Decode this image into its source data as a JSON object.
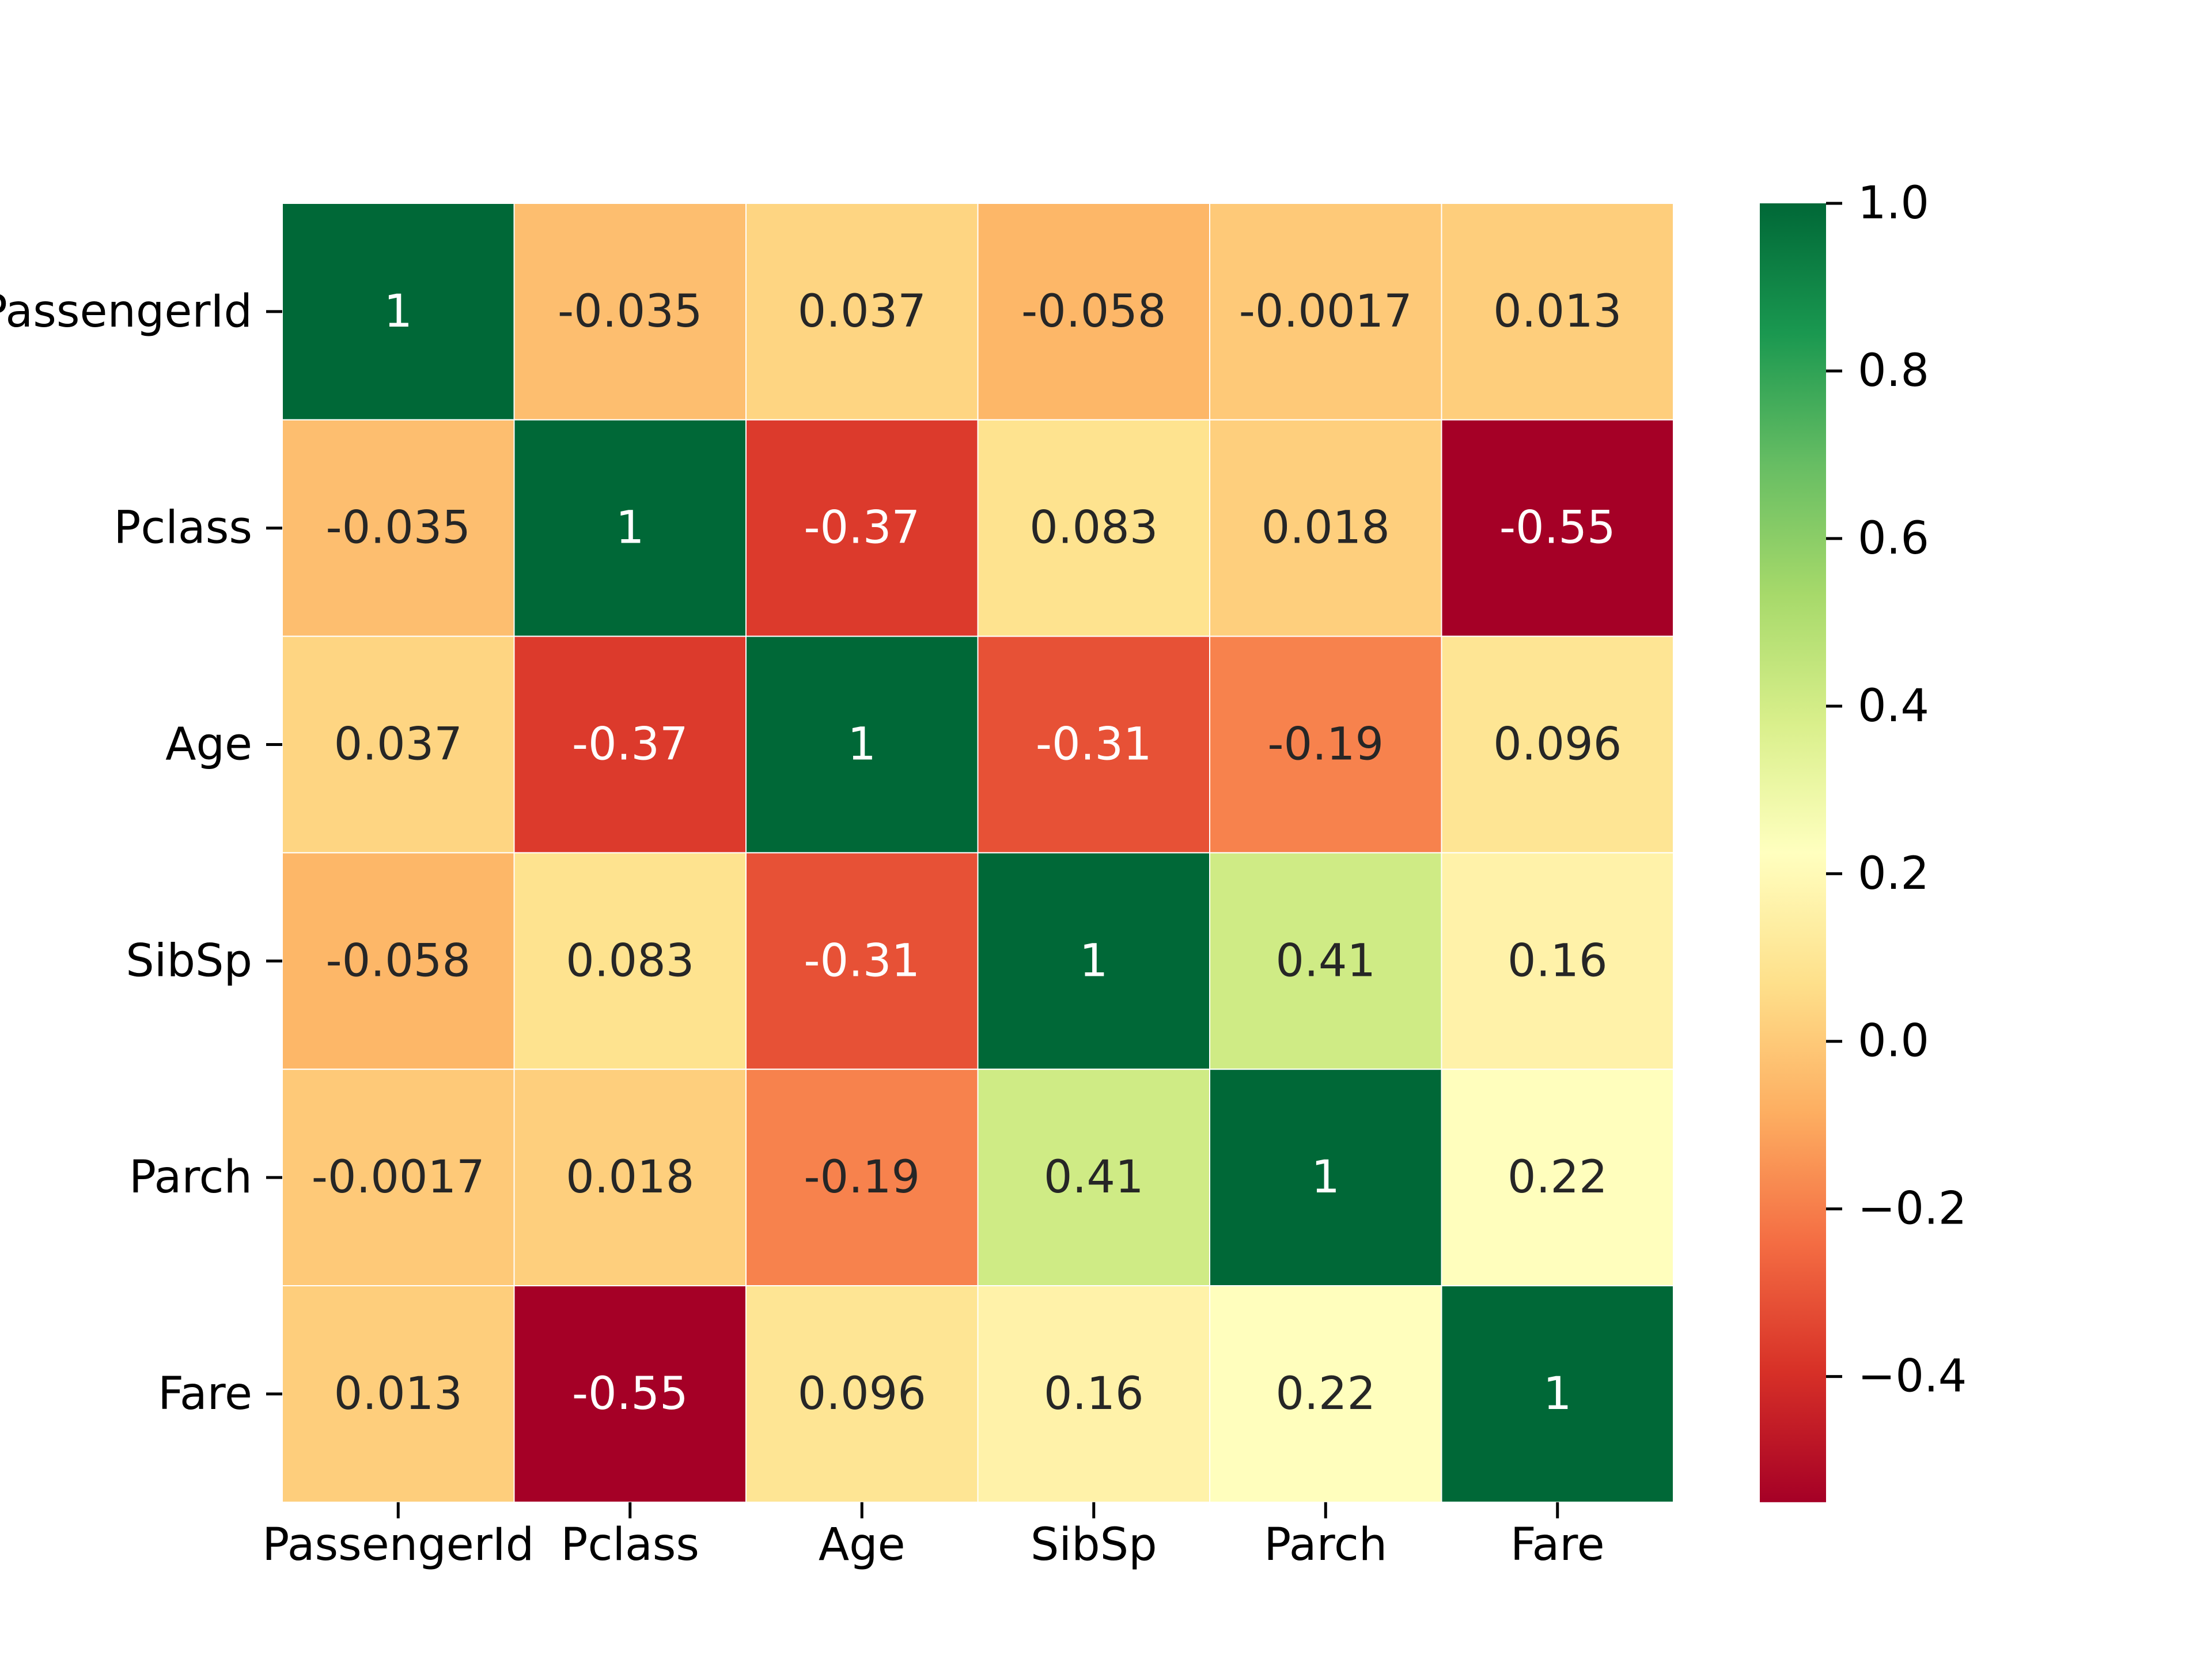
{
  "chart_data": {
    "type": "heatmap",
    "title": "",
    "xlabel": "",
    "ylabel": "",
    "x_labels": [
      "PassengerId",
      "Pclass",
      "Age",
      "SibSp",
      "Parch",
      "Fare"
    ],
    "y_labels": [
      "PassengerId",
      "Pclass",
      "Age",
      "SibSp",
      "Parch",
      "Fare"
    ],
    "values": [
      [
        1,
        -0.035,
        0.037,
        -0.058,
        -0.0017,
        0.013
      ],
      [
        -0.035,
        1,
        -0.37,
        0.083,
        0.018,
        -0.55
      ],
      [
        0.037,
        -0.37,
        1,
        -0.31,
        -0.19,
        0.096
      ],
      [
        -0.058,
        0.083,
        -0.31,
        1,
        0.41,
        0.16
      ],
      [
        -0.0017,
        0.018,
        -0.19,
        0.41,
        1,
        0.22
      ],
      [
        0.013,
        -0.55,
        0.096,
        0.16,
        0.22,
        1
      ]
    ],
    "cell_labels": [
      [
        "1",
        "-0.035",
        "0.037",
        "-0.058",
        "-0.0017",
        "0.013"
      ],
      [
        "-0.035",
        "1",
        "-0.37",
        "0.083",
        "0.018",
        "-0.55"
      ],
      [
        "0.037",
        "-0.37",
        "1",
        "-0.31",
        "-0.19",
        "0.096"
      ],
      [
        "-0.058",
        "0.083",
        "-0.31",
        "1",
        "0.41",
        "0.16"
      ],
      [
        "-0.0017",
        "0.018",
        "-0.19",
        "0.41",
        "1",
        "0.22"
      ],
      [
        "0.013",
        "-0.55",
        "0.096",
        "0.16",
        "0.22",
        "1"
      ]
    ],
    "colormap": "RdYlGn",
    "vmin": -0.55,
    "vmax": 1.0,
    "colorbar": {
      "ticks": [
        1.0,
        0.8,
        0.6,
        0.4,
        0.2,
        0.0,
        -0.2,
        -0.4
      ],
      "tick_labels": [
        "1.0",
        "0.8",
        "0.6",
        "0.4",
        "0.2",
        "0.0",
        "−0.2",
        "−0.4"
      ],
      "placement": "right"
    },
    "annot_colors": {
      "dark": "#262626",
      "light": "#ffffff"
    }
  }
}
